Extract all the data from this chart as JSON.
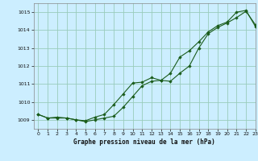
{
  "title": "Graphe pression niveau de la mer (hPa)",
  "bg_color": "#cceeff",
  "grid_color": "#99ccbb",
  "line_color": "#1a5c1a",
  "marker_color": "#1a5c1a",
  "xlim": [
    -0.5,
    23
  ],
  "ylim": [
    1008.5,
    1015.5
  ],
  "xticks": [
    0,
    1,
    2,
    3,
    4,
    5,
    6,
    7,
    8,
    9,
    10,
    11,
    12,
    13,
    14,
    15,
    16,
    17,
    18,
    19,
    20,
    21,
    22,
    23
  ],
  "yticks": [
    1009,
    1010,
    1011,
    1012,
    1013,
    1014,
    1015
  ],
  "series1_x": [
    0,
    1,
    2,
    3,
    4,
    5,
    6,
    7,
    8,
    9,
    10,
    11,
    12,
    13,
    14,
    15,
    16,
    17,
    18,
    19,
    20,
    21,
    22,
    23
  ],
  "series1_y": [
    1009.3,
    1009.1,
    1009.1,
    1009.1,
    1009.0,
    1008.9,
    1009.0,
    1009.1,
    1009.2,
    1009.7,
    1010.3,
    1010.9,
    1011.15,
    1011.2,
    1011.15,
    1011.6,
    1012.0,
    1013.0,
    1013.8,
    1014.15,
    1014.4,
    1014.7,
    1015.05,
    1014.3
  ],
  "series2_x": [
    0,
    1,
    2,
    3,
    4,
    5,
    6,
    7,
    8,
    9,
    10,
    11,
    12,
    13,
    14,
    15,
    16,
    17,
    18,
    19,
    20,
    21,
    22,
    23
  ],
  "series2_y": [
    1009.3,
    1009.1,
    1009.15,
    1009.1,
    1009.0,
    1008.95,
    1009.15,
    1009.3,
    1009.85,
    1010.45,
    1011.05,
    1011.1,
    1011.35,
    1011.2,
    1011.6,
    1012.5,
    1012.85,
    1013.35,
    1013.9,
    1014.25,
    1014.45,
    1015.0,
    1015.1,
    1014.2
  ]
}
